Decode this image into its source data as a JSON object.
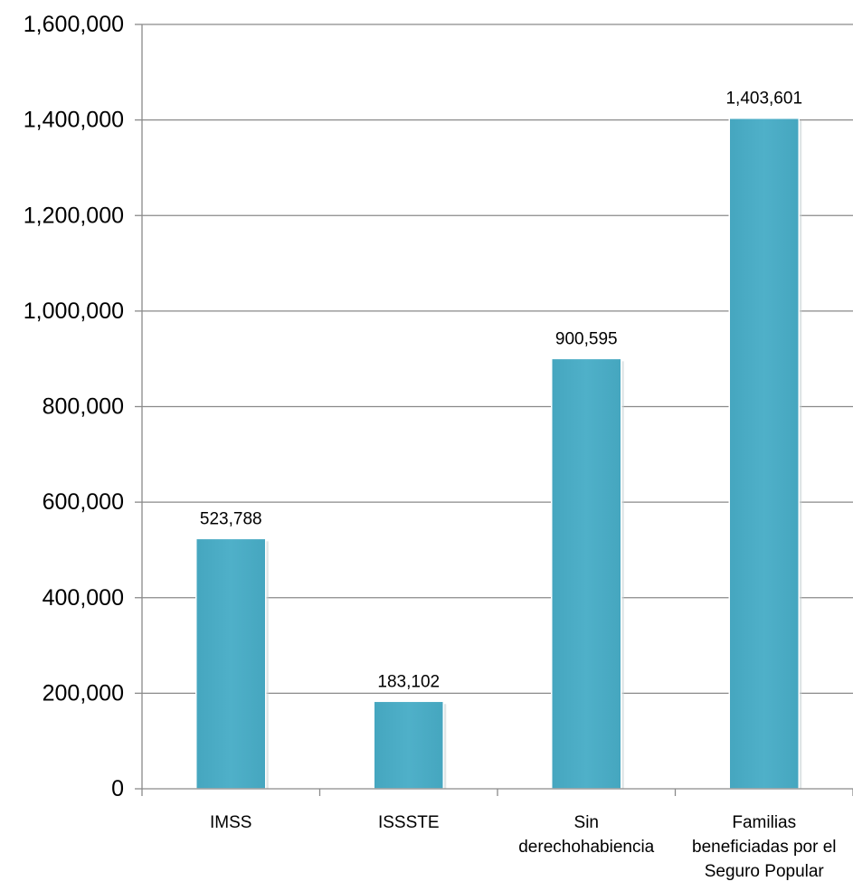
{
  "chart_data": {
    "type": "bar",
    "categories": [
      "IMSS",
      "ISSSTE",
      "Sin derechohabiencia",
      "Familias beneficiadas por el Seguro Popular"
    ],
    "category_label_lines": [
      [
        "IMSS"
      ],
      [
        "ISSSTE"
      ],
      [
        "Sin",
        "derechohabiencia"
      ],
      [
        "Familias",
        "beneficiadas por el",
        "Seguro Popular"
      ]
    ],
    "values": [
      523788,
      183102,
      900595,
      1403601
    ],
    "data_labels": [
      "523,788",
      "183,102",
      "900,595",
      "1,403,601"
    ],
    "title": "",
    "xlabel": "",
    "ylabel": "",
    "ylim": [
      0,
      1600000
    ],
    "yticks": [
      0,
      200000,
      400000,
      600000,
      800000,
      1000000,
      1200000,
      1400000,
      1600000
    ],
    "ytick_labels": [
      "0",
      "200,000",
      "400,000",
      "600,000",
      "800,000",
      "1,000,000",
      "1,200,000",
      "1,400,000",
      "1,600,000"
    ],
    "grid": true,
    "legend": "none",
    "bar_color": "#4bacc6"
  }
}
